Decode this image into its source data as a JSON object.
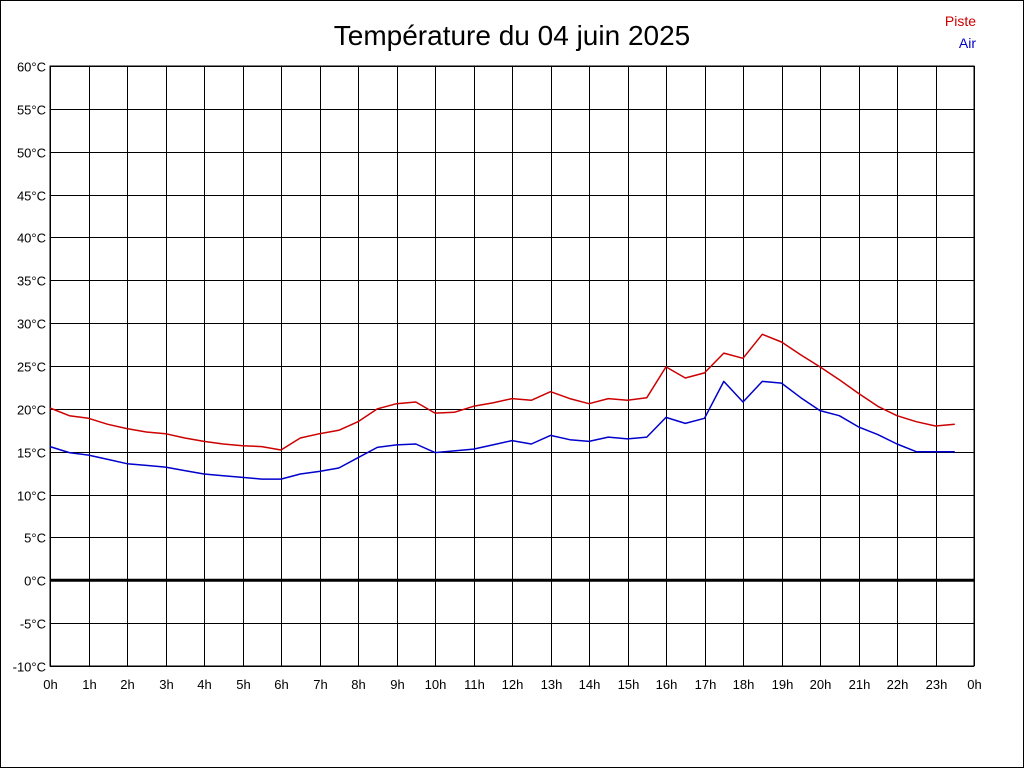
{
  "chart_data": {
    "type": "line",
    "title": "Température du 04 juin 2025",
    "xlabel": "",
    "ylabel": "",
    "x_unit": "hours",
    "xlim": [
      0,
      24
    ],
    "ylim": [
      -10,
      60
    ],
    "grid": true,
    "legend": "top-right",
    "x_ticks": [
      "0h",
      "1h",
      "2h",
      "3h",
      "4h",
      "5h",
      "6h",
      "7h",
      "8h",
      "9h",
      "10h",
      "11h",
      "12h",
      "13h",
      "14h",
      "15h",
      "16h",
      "17h",
      "18h",
      "19h",
      "20h",
      "21h",
      "22h",
      "23h",
      "0h"
    ],
    "y_ticks": [
      "-10°C",
      "-5°C",
      "0°C",
      "5°C",
      "10°C",
      "15°C",
      "20°C",
      "25°C",
      "30°C",
      "35°C",
      "40°C",
      "45°C",
      "50°C",
      "55°C",
      "60°C"
    ],
    "y_tick_values": [
      -10,
      -5,
      0,
      5,
      10,
      15,
      20,
      25,
      30,
      35,
      40,
      45,
      50,
      55,
      60
    ],
    "zero_line": 0,
    "series": [
      {
        "name": "Piste",
        "color": "#cc0000",
        "x": [
          0,
          0.5,
          1,
          1.5,
          2,
          2.5,
          3,
          3.5,
          4,
          4.5,
          5,
          5.5,
          6,
          6.5,
          7,
          7.5,
          8,
          8.5,
          9,
          9.5,
          10,
          10.5,
          11,
          11.5,
          12,
          12.5,
          13,
          13.5,
          14,
          14.5,
          15,
          15.5,
          16,
          16.5,
          17,
          17.5,
          18,
          18.5,
          19,
          19.5,
          20,
          20.5,
          21,
          21.5,
          22,
          22.5,
          23,
          23.5
        ],
        "values": [
          20.1,
          19.2,
          18.9,
          18.2,
          17.7,
          17.3,
          17.1,
          16.6,
          16.2,
          15.9,
          15.7,
          15.6,
          15.2,
          16.6,
          17.1,
          17.5,
          18.5,
          20.0,
          20.6,
          20.8,
          19.5,
          19.6,
          20.3,
          20.7,
          21.2,
          21.0,
          22.0,
          21.2,
          20.6,
          21.2,
          21.0,
          21.3,
          24.9,
          23.6,
          24.2,
          26.5,
          25.9,
          28.7,
          27.8,
          26.3,
          24.9,
          23.4,
          21.8,
          20.3,
          19.2,
          18.5,
          18.0,
          18.2
        ]
      },
      {
        "name": "Air",
        "color": "#0000cc",
        "x": [
          0,
          0.5,
          1,
          1.5,
          2,
          2.5,
          3,
          3.5,
          4,
          4.5,
          5,
          5.5,
          6,
          6.5,
          7,
          7.5,
          8,
          8.5,
          9,
          9.5,
          10,
          10.5,
          11,
          11.5,
          12,
          12.5,
          13,
          13.5,
          14,
          14.5,
          15,
          15.5,
          16,
          16.5,
          17,
          17.5,
          18,
          18.5,
          19,
          19.5,
          20,
          20.5,
          21,
          21.5,
          22,
          22.5,
          23,
          23.5
        ],
        "values": [
          15.6,
          14.9,
          14.6,
          14.1,
          13.6,
          13.4,
          13.2,
          12.8,
          12.4,
          12.2,
          12.0,
          11.8,
          11.8,
          12.4,
          12.7,
          13.1,
          14.3,
          15.5,
          15.8,
          15.9,
          14.9,
          15.1,
          15.3,
          15.8,
          16.3,
          15.9,
          16.9,
          16.4,
          16.2,
          16.7,
          16.5,
          16.7,
          19.0,
          18.3,
          18.9,
          23.2,
          20.8,
          23.2,
          23.0,
          21.3,
          19.8,
          19.2,
          17.9,
          17.0,
          15.9,
          15.0,
          15.0,
          15.0
        ]
      }
    ]
  }
}
